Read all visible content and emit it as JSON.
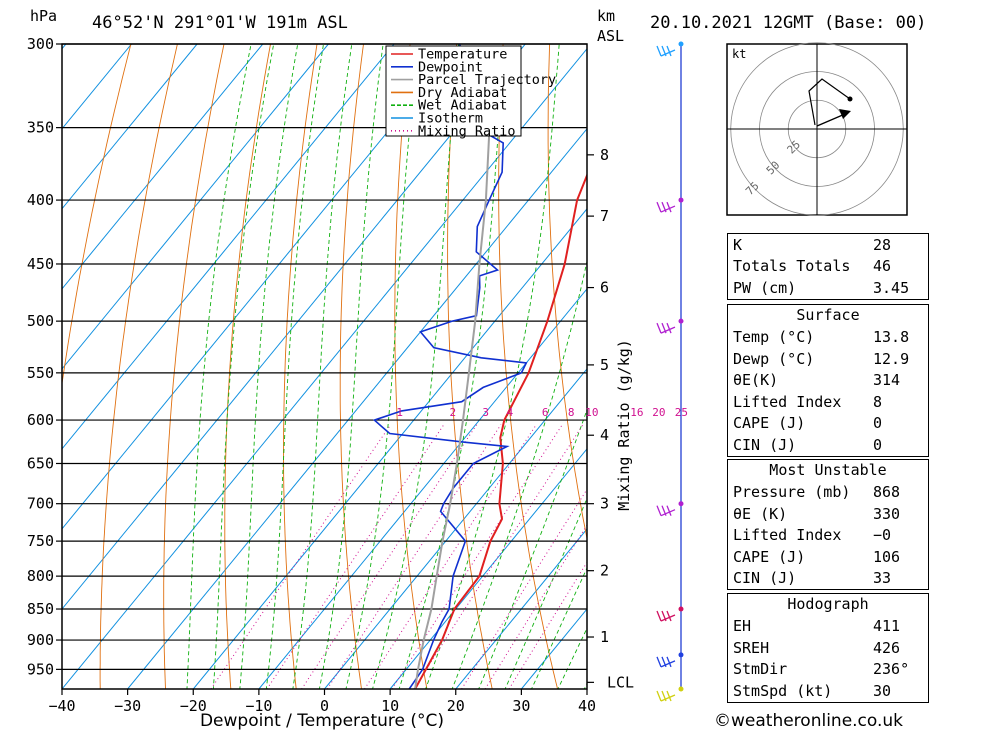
{
  "header": {
    "hpa_unit": "hPa",
    "location": "46°52'N 291°01'W 191m ASL",
    "km_unit": "km",
    "asl_unit": "ASL",
    "datetime": "20.10.2021 12GMT (Base: 00)"
  },
  "legend": [
    {
      "label": "Temperature",
      "color": "#e02020",
      "style": "solid"
    },
    {
      "label": "Dewpoint",
      "color": "#1030d0",
      "style": "solid"
    },
    {
      "label": "Parcel Trajectory",
      "color": "#a0a0a0",
      "style": "solid"
    },
    {
      "label": "Dry Adiabat",
      "color": "#e07010",
      "style": "solid"
    },
    {
      "label": "Wet Adiabat",
      "color": "#10b010",
      "style": "dashed"
    },
    {
      "label": "Isotherm",
      "color": "#1090e0",
      "style": "solid"
    },
    {
      "label": "Mixing Ratio",
      "color": "#d01090",
      "style": "dotted"
    }
  ],
  "chart_data": {
    "type": "line",
    "title": "46°52'N 291°01'W 191m ASL",
    "xlabel": "Dewpoint / Temperature (°C)",
    "ylabel": "hPa",
    "y2label": "Mixing Ratio (g/kg)",
    "xlim": [
      -40,
      40
    ],
    "ylim": [
      985,
      300
    ],
    "y_scale": "log",
    "x_ticks": [
      "−40",
      "−30",
      "−20",
      "−10",
      "0",
      "10",
      "20",
      "30",
      "40"
    ],
    "pressure_ticks": [
      300,
      350,
      400,
      450,
      500,
      550,
      600,
      650,
      700,
      750,
      800,
      850,
      900,
      950
    ],
    "km_ticks": [
      {
        "label": "8",
        "p": 368
      },
      {
        "label": "7",
        "p": 412
      },
      {
        "label": "6",
        "p": 470
      },
      {
        "label": "5",
        "p": 542
      },
      {
        "label": "4",
        "p": 617
      },
      {
        "label": "3",
        "p": 700
      },
      {
        "label": "2",
        "p": 792
      },
      {
        "label": "1",
        "p": 895
      },
      {
        "label": "LCL",
        "p": 973
      }
    ],
    "mixing_ratio_labels": [
      "1",
      "2",
      "3",
      "4",
      "6",
      "8",
      "10",
      "16",
      "20",
      "25"
    ],
    "series": [
      {
        "name": "Temperature",
        "color": "#e02020",
        "points": [
          [
            985,
            13.8
          ],
          [
            950,
            13.0
          ],
          [
            900,
            11.8
          ],
          [
            850,
            9.8
          ],
          [
            800,
            9.5
          ],
          [
            750,
            6.8
          ],
          [
            720,
            5.8
          ],
          [
            700,
            3.5
          ],
          [
            650,
            -1.0
          ],
          [
            620,
            -4.6
          ],
          [
            600,
            -6.2
          ],
          [
            550,
            -8.4
          ],
          [
            500,
            -12.0
          ],
          [
            450,
            -16.5
          ],
          [
            400,
            -22.6
          ],
          [
            370,
            -25.3
          ],
          [
            350,
            -28.6
          ],
          [
            330,
            -32.0
          ],
          [
            300,
            -37.0
          ]
        ]
      },
      {
        "name": "Dewpoint",
        "color": "#1030d0",
        "points": [
          [
            985,
            12.9
          ],
          [
            950,
            12.5
          ],
          [
            900,
            10.5
          ],
          [
            870,
            9.5
          ],
          [
            850,
            9.0
          ],
          [
            800,
            5.5
          ],
          [
            750,
            3.0
          ],
          [
            710,
            -4.5
          ],
          [
            700,
            -5.0
          ],
          [
            680,
            -5.5
          ],
          [
            650,
            -5.5
          ],
          [
            630,
            -2.5
          ],
          [
            625,
            -9.5
          ],
          [
            615,
            -22.0
          ],
          [
            600,
            -26.0
          ],
          [
            590,
            -23.0
          ],
          [
            580,
            -15.0
          ],
          [
            565,
            -13.5
          ],
          [
            550,
            -9.5
          ],
          [
            540,
            -10.0
          ],
          [
            535,
            -17.5
          ],
          [
            525,
            -26.0
          ],
          [
            510,
            -30.0
          ],
          [
            500,
            -26.5
          ],
          [
            495,
            -23.5
          ],
          [
            470,
            -26.5
          ],
          [
            460,
            -28.0
          ],
          [
            455,
            -26.0
          ],
          [
            440,
            -31.5
          ],
          [
            420,
            -34.5
          ],
          [
            400,
            -36.0
          ],
          [
            380,
            -37.5
          ],
          [
            360,
            -41.0
          ],
          [
            350,
            -47.0
          ],
          [
            330,
            -51.0
          ],
          [
            320,
            -54.0
          ],
          [
            300,
            -60.0
          ]
        ]
      },
      {
        "name": "Parcel Trajectory",
        "color": "#a0a0a0",
        "points": [
          [
            985,
            13.8
          ],
          [
            950,
            11.8
          ],
          [
            900,
            9.0
          ],
          [
            850,
            6.3
          ],
          [
            800,
            3.0
          ],
          [
            750,
            -0.5
          ],
          [
            700,
            -4.0
          ],
          [
            650,
            -8.0
          ],
          [
            600,
            -12.5
          ],
          [
            550,
            -17.5
          ],
          [
            500,
            -23.0
          ],
          [
            450,
            -29.5
          ],
          [
            400,
            -36.5
          ],
          [
            350,
            -45.0
          ],
          [
            310,
            -53.0
          ]
        ]
      }
    ],
    "wind_barbs": [
      {
        "p": 300,
        "color": "#20a0ff"
      },
      {
        "p": 400,
        "color": "#b020d0"
      },
      {
        "p": 500,
        "color": "#b020d0"
      },
      {
        "p": 700,
        "color": "#b020d0"
      },
      {
        "p": 850,
        "color": "#d01060"
      },
      {
        "p": 925,
        "color": "#2040e0"
      },
      {
        "p": 985,
        "color": "#d0d010"
      }
    ]
  },
  "hodograph": {
    "unit": "kt",
    "ring_labels": [
      "25",
      "50",
      "75"
    ]
  },
  "stats": {
    "k_label": "K",
    "k_value": "28",
    "tt_label": "Totals Totals",
    "tt_value": "46",
    "pw_label": "PW (cm)",
    "pw_value": "3.45",
    "surface": {
      "title": "Surface",
      "temp_label": "Temp (°C)",
      "temp_value": "13.8",
      "dewp_label": "Dewp (°C)",
      "dewp_value": "12.9",
      "thetae_label": "θE(K)",
      "thetae_value": "314",
      "li_label": "Lifted Index",
      "li_value": "8",
      "cape_label": "CAPE (J)",
      "cape_value": "0",
      "cin_label": "CIN (J)",
      "cin_value": "0"
    },
    "most_unstable": {
      "title": "Most Unstable",
      "pressure_label": "Pressure (mb)",
      "pressure_value": "868",
      "thetae_label": "θE (K)",
      "thetae_value": "330",
      "li_label": "Lifted Index",
      "li_value": "−0",
      "cape_label": "CAPE (J)",
      "cape_value": "106",
      "cin_label": "CIN (J)",
      "cin_value": "33"
    },
    "hodograph": {
      "title": "Hodograph",
      "eh_label": "EH",
      "eh_value": "411",
      "sreh_label": "SREH",
      "sreh_value": "426",
      "stmdir_label": "StmDir",
      "stmdir_value": "236°",
      "stmspd_label": "StmSpd (kt)",
      "stmspd_value": "30"
    }
  },
  "footer": "©weatheronline.co.uk"
}
